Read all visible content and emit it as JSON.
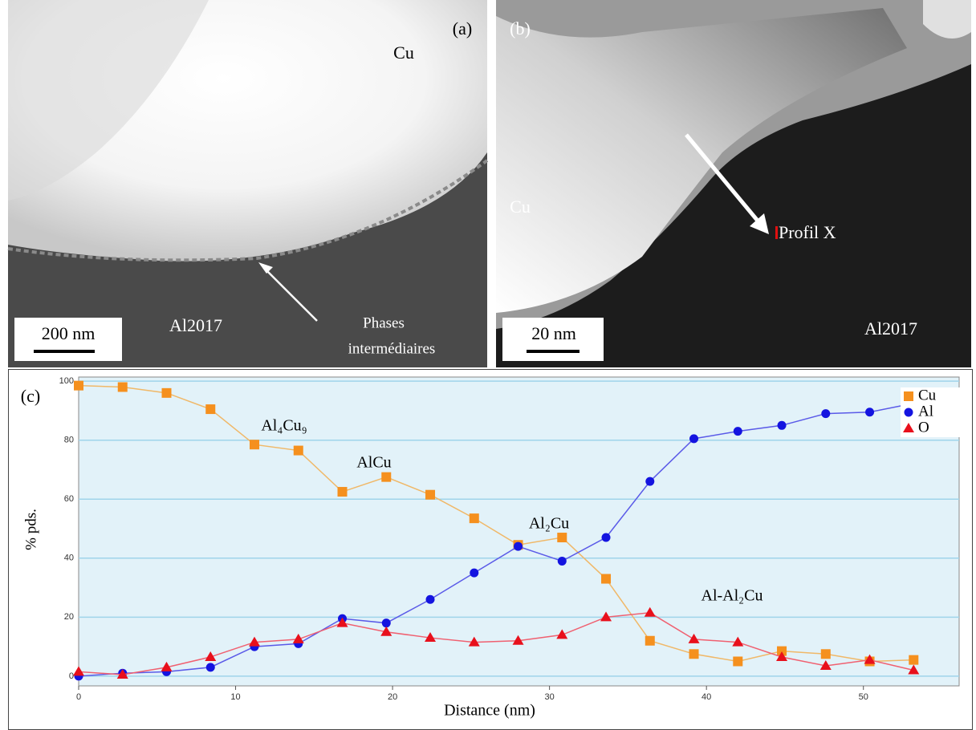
{
  "panels": [
    {
      "label": "(a)",
      "phase": "Cu",
      "scale": "200 nm",
      "matrix": "Al2017",
      "arrow_label": [
        "Phases",
        "intermédiaires"
      ]
    },
    {
      "label": "(b)",
      "phase": "Cu",
      "scale": "20 nm",
      "matrix": "Al2017",
      "arrow_label": [
        "Profil X"
      ]
    }
  ],
  "chart_data": {
    "type": "line",
    "label": "(c)",
    "x_label": "Distance (nm)",
    "y_label": "% pds.",
    "x": [
      0,
      2.8,
      5.6,
      8.4,
      11.2,
      14.0,
      16.8,
      19.6,
      22.4,
      25.2,
      28.0,
      30.8,
      33.6,
      36.4,
      39.2,
      42.0,
      44.8,
      47.6,
      50.4,
      53.2
    ],
    "series": [
      {
        "name": "Cu",
        "color": "#f5901e",
        "line_color": "#f0b868",
        "marker": "square",
        "values": [
          98.5,
          98,
          96,
          90.5,
          78.5,
          76.5,
          62.5,
          67.5,
          61.5,
          53.5,
          44.5,
          47,
          33,
          12,
          7.5,
          5,
          8.5,
          7.5,
          5,
          5.5
        ]
      },
      {
        "name": "Al",
        "color": "#1414e0",
        "line_color": "#5a5ae8",
        "marker": "circle",
        "values": [
          0,
          1,
          1.5,
          3,
          10,
          11,
          19.5,
          18,
          26,
          35,
          44,
          39,
          47,
          66,
          80.5,
          83,
          85,
          89,
          89.5,
          92.5
        ]
      },
      {
        "name": "O",
        "color": "#e8101c",
        "line_color": "#f06070",
        "marker": "triangle",
        "values": [
          1.5,
          0.5,
          3,
          6.5,
          11.5,
          12.5,
          18,
          15,
          13,
          11.5,
          12,
          14,
          20,
          21.5,
          12.5,
          11.5,
          6.5,
          3.5,
          5.5,
          2
        ]
      }
    ],
    "annotations": [
      "Al₄Cu₉",
      "AlCu",
      "Al₂Cu",
      "Al-Al₂Cu"
    ],
    "xlim": [
      0,
      56.1
    ],
    "ylim": [
      -3.3,
      101.4
    ],
    "xticks": [
      0,
      10,
      20,
      30,
      40,
      50
    ],
    "yticks": [
      0,
      20,
      40,
      60,
      80,
      100
    ],
    "grid": true,
    "legend": "top-right",
    "background": "#e2f2f9"
  }
}
